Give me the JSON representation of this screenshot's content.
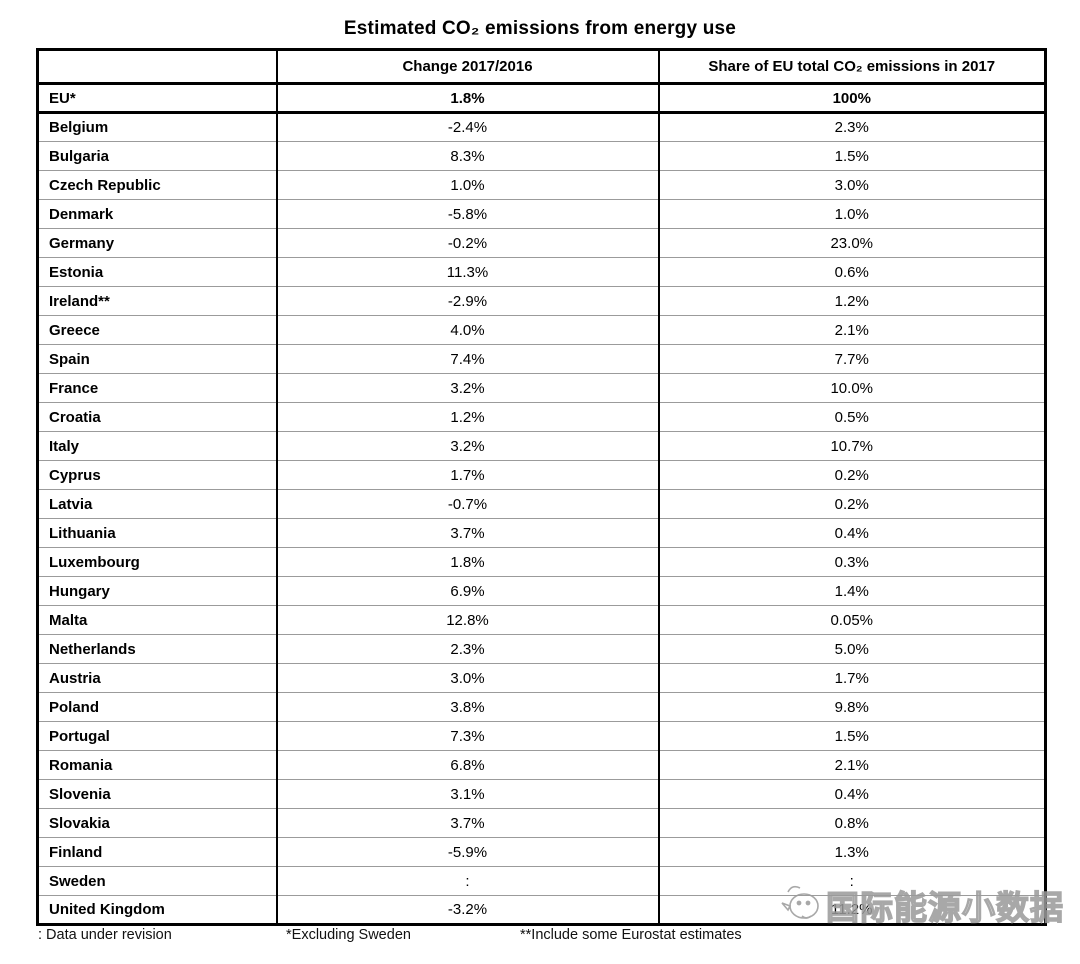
{
  "title": "Estimated CO₂ emissions from energy use",
  "chart_data": {
    "type": "table",
    "columns": [
      "",
      "Change 2017/2016",
      "Share of EU total CO₂ emissions in 2017"
    ],
    "rows": [
      {
        "country": "EU*",
        "change": "1.8%",
        "share": "100%",
        "bold": true
      },
      {
        "country": "Belgium",
        "change": "-2.4%",
        "share": "2.3%"
      },
      {
        "country": "Bulgaria",
        "change": "8.3%",
        "share": "1.5%"
      },
      {
        "country": "Czech Republic",
        "change": "1.0%",
        "share": "3.0%"
      },
      {
        "country": "Denmark",
        "change": "-5.8%",
        "share": "1.0%"
      },
      {
        "country": "Germany",
        "change": "-0.2%",
        "share": "23.0%"
      },
      {
        "country": "Estonia",
        "change": "11.3%",
        "share": "0.6%"
      },
      {
        "country": "Ireland**",
        "change": "-2.9%",
        "share": "1.2%"
      },
      {
        "country": "Greece",
        "change": "4.0%",
        "share": "2.1%"
      },
      {
        "country": "Spain",
        "change": "7.4%",
        "share": "7.7%"
      },
      {
        "country": "France",
        "change": "3.2%",
        "share": "10.0%"
      },
      {
        "country": "Croatia",
        "change": "1.2%",
        "share": "0.5%"
      },
      {
        "country": "Italy",
        "change": "3.2%",
        "share": "10.7%"
      },
      {
        "country": "Cyprus",
        "change": "1.7%",
        "share": "0.2%"
      },
      {
        "country": "Latvia",
        "change": "-0.7%",
        "share": "0.2%"
      },
      {
        "country": "Lithuania",
        "change": "3.7%",
        "share": "0.4%"
      },
      {
        "country": "Luxembourg",
        "change": "1.8%",
        "share": "0.3%"
      },
      {
        "country": "Hungary",
        "change": "6.9%",
        "share": "1.4%"
      },
      {
        "country": "Malta",
        "change": "12.8%",
        "share": "0.05%"
      },
      {
        "country": "Netherlands",
        "change": "2.3%",
        "share": "5.0%"
      },
      {
        "country": "Austria",
        "change": "3.0%",
        "share": "1.7%"
      },
      {
        "country": "Poland",
        "change": "3.8%",
        "share": "9.8%"
      },
      {
        "country": "Portugal",
        "change": "7.3%",
        "share": "1.5%"
      },
      {
        "country": "Romania",
        "change": "6.8%",
        "share": "2.1%"
      },
      {
        "country": "Slovenia",
        "change": "3.1%",
        "share": "0.4%"
      },
      {
        "country": "Slovakia",
        "change": "3.7%",
        "share": "0.8%"
      },
      {
        "country": "Finland",
        "change": "-5.9%",
        "share": "1.3%"
      },
      {
        "country": "Sweden",
        "change": ":",
        "share": ":"
      },
      {
        "country": "United Kingdom",
        "change": "-3.2%",
        "share": "11.2%"
      }
    ],
    "title": "Estimated CO₂ emissions from energy use",
    "legend": "none",
    "grid": "table-borders"
  },
  "footnotes": {
    "revision": ": Data under revision",
    "excluding": "*Excluding Sweden",
    "eurostat": "**Include some Eurostat estimates"
  },
  "watermark": {
    "text": "国际能源小数据",
    "icon": "bird-logo-icon",
    "color": "#9a9a9a"
  },
  "colors": {
    "border": "#000000",
    "row_separator": "#9b9b9b",
    "text": "#000000",
    "background": "#ffffff"
  }
}
